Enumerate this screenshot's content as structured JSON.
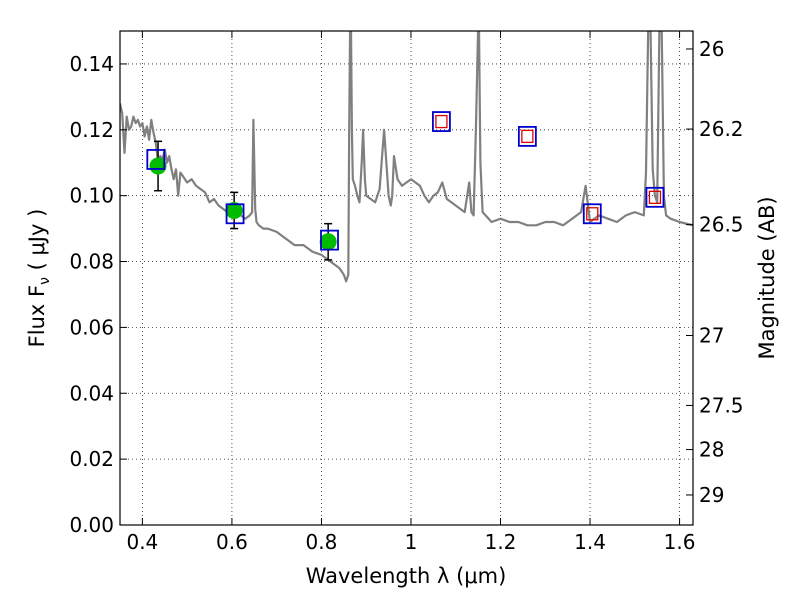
{
  "chart_data": {
    "type": "line",
    "xlabel": "Wavelength  λ (μm)",
    "ylabel": "Flux  F",
    "ylabel_sub": "ν",
    "ylabel_unit": "  (  μJy )",
    "ylabel_right": "Magnitude (AB)",
    "xlim": [
      0.35,
      1.63
    ],
    "ylim": [
      0.0,
      0.15
    ],
    "grid": true,
    "x_ticks": [
      0.4,
      0.6,
      0.8,
      1.0,
      1.2,
      1.4,
      1.6
    ],
    "x_tick_labels": [
      "0.4",
      "0.6",
      "0.8",
      "1",
      "1.2",
      "1.4",
      "1.6"
    ],
    "y_ticks": [
      0.0,
      0.02,
      0.04,
      0.06,
      0.08,
      0.1,
      0.12,
      0.14
    ],
    "y_tick_labels": [
      "0.00",
      "0.02",
      "0.04",
      "0.06",
      "0.08",
      "0.10",
      "0.12",
      "0.14"
    ],
    "mag_ticks": [
      26,
      26.2,
      26.5,
      27,
      27.5,
      28,
      29
    ],
    "mag_tick_labels": [
      "26",
      "26.2",
      "26.5",
      "27",
      "27.5",
      "28",
      "29"
    ],
    "colors": {
      "model": "#808080",
      "observed": "#00bb00",
      "model_phot_box": "#0000cc",
      "ir_box": "#dd0000",
      "errorbar": "#000000"
    },
    "series": [
      {
        "kind": "model_spectrum",
        "x": [
          0.35,
          0.355,
          0.36,
          0.365,
          0.37,
          0.375,
          0.38,
          0.385,
          0.39,
          0.395,
          0.4,
          0.405,
          0.41,
          0.415,
          0.42,
          0.425,
          0.43,
          0.435,
          0.44,
          0.445,
          0.45,
          0.455,
          0.46,
          0.465,
          0.47,
          0.475,
          0.48,
          0.485,
          0.49,
          0.5,
          0.51,
          0.52,
          0.53,
          0.54,
          0.55,
          0.56,
          0.57,
          0.58,
          0.59,
          0.6,
          0.61,
          0.62,
          0.63,
          0.64,
          0.645,
          0.648,
          0.652,
          0.655,
          0.66,
          0.67,
          0.68,
          0.7,
          0.72,
          0.74,
          0.76,
          0.78,
          0.8,
          0.82,
          0.84,
          0.85,
          0.855,
          0.86,
          0.862,
          0.864,
          0.866,
          0.868,
          0.87,
          0.875,
          0.88,
          0.885,
          0.89,
          0.893,
          0.897,
          0.9,
          0.91,
          0.92,
          0.93,
          0.94,
          0.95,
          0.955,
          0.958,
          0.962,
          0.97,
          0.98,
          0.99,
          1.0,
          1.01,
          1.02,
          1.03,
          1.04,
          1.05,
          1.06,
          1.07,
          1.08,
          1.09,
          1.1,
          1.12,
          1.13,
          1.135,
          1.14,
          1.145,
          1.15,
          1.152,
          1.155,
          1.16,
          1.18,
          1.2,
          1.22,
          1.24,
          1.26,
          1.28,
          1.3,
          1.32,
          1.34,
          1.36,
          1.38,
          1.39,
          1.4,
          1.42,
          1.44,
          1.46,
          1.48,
          1.5,
          1.52,
          1.525,
          1.53,
          1.535,
          1.54,
          1.545,
          1.55,
          1.555,
          1.56,
          1.565,
          1.57,
          1.58,
          1.6,
          1.63
        ],
        "y": [
          0.128,
          0.125,
          0.113,
          0.124,
          0.12,
          0.121,
          0.124,
          0.122,
          0.123,
          0.121,
          0.122,
          0.118,
          0.121,
          0.117,
          0.123,
          0.119,
          0.116,
          0.11,
          0.112,
          0.111,
          0.114,
          0.11,
          0.112,
          0.108,
          0.105,
          0.108,
          0.1,
          0.107,
          0.106,
          0.104,
          0.105,
          0.103,
          0.102,
          0.101,
          0.098,
          0.099,
          0.097,
          0.096,
          0.095,
          0.095,
          0.094,
          0.094,
          0.093,
          0.094,
          0.095,
          0.123,
          0.096,
          0.092,
          0.091,
          0.09,
          0.09,
          0.089,
          0.087,
          0.085,
          0.085,
          0.083,
          0.082,
          0.08,
          0.078,
          0.076,
          0.074,
          0.076,
          0.12,
          0.151,
          0.151,
          0.12,
          0.105,
          0.103,
          0.1,
          0.098,
          0.11,
          0.12,
          0.105,
          0.1,
          0.099,
          0.098,
          0.102,
          0.12,
          0.1,
          0.097,
          0.1,
          0.112,
          0.105,
          0.103,
          0.104,
          0.105,
          0.104,
          0.103,
          0.1,
          0.098,
          0.1,
          0.101,
          0.104,
          0.099,
          0.098,
          0.097,
          0.095,
          0.104,
          0.095,
          0.094,
          0.12,
          0.151,
          0.151,
          0.11,
          0.095,
          0.092,
          0.093,
          0.092,
          0.092,
          0.091,
          0.091,
          0.092,
          0.092,
          0.091,
          0.093,
          0.095,
          0.103,
          0.092,
          0.094,
          0.093,
          0.092,
          0.094,
          0.095,
          0.094,
          0.107,
          0.151,
          0.151,
          0.108,
          0.1,
          0.098,
          0.151,
          0.151,
          0.1,
          0.094,
          0.093,
          0.092,
          0.091
        ]
      },
      {
        "kind": "observed_points",
        "x": [
          0.435,
          0.605,
          0.815
        ],
        "y": [
          0.109,
          0.0955,
          0.086
        ],
        "yerr": [
          0.0075,
          0.0055,
          0.0055
        ]
      },
      {
        "kind": "model_photometry_boxes",
        "x": [
          0.43,
          0.607,
          0.818,
          1.068,
          1.26,
          1.405,
          1.545
        ],
        "y": [
          0.111,
          0.0945,
          0.0865,
          0.1225,
          0.118,
          0.0945,
          0.0995
        ]
      },
      {
        "kind": "ir_points",
        "x": [
          1.068,
          1.26,
          1.405,
          1.545
        ],
        "y": [
          0.1225,
          0.118,
          0.0945,
          0.0995
        ]
      }
    ]
  }
}
